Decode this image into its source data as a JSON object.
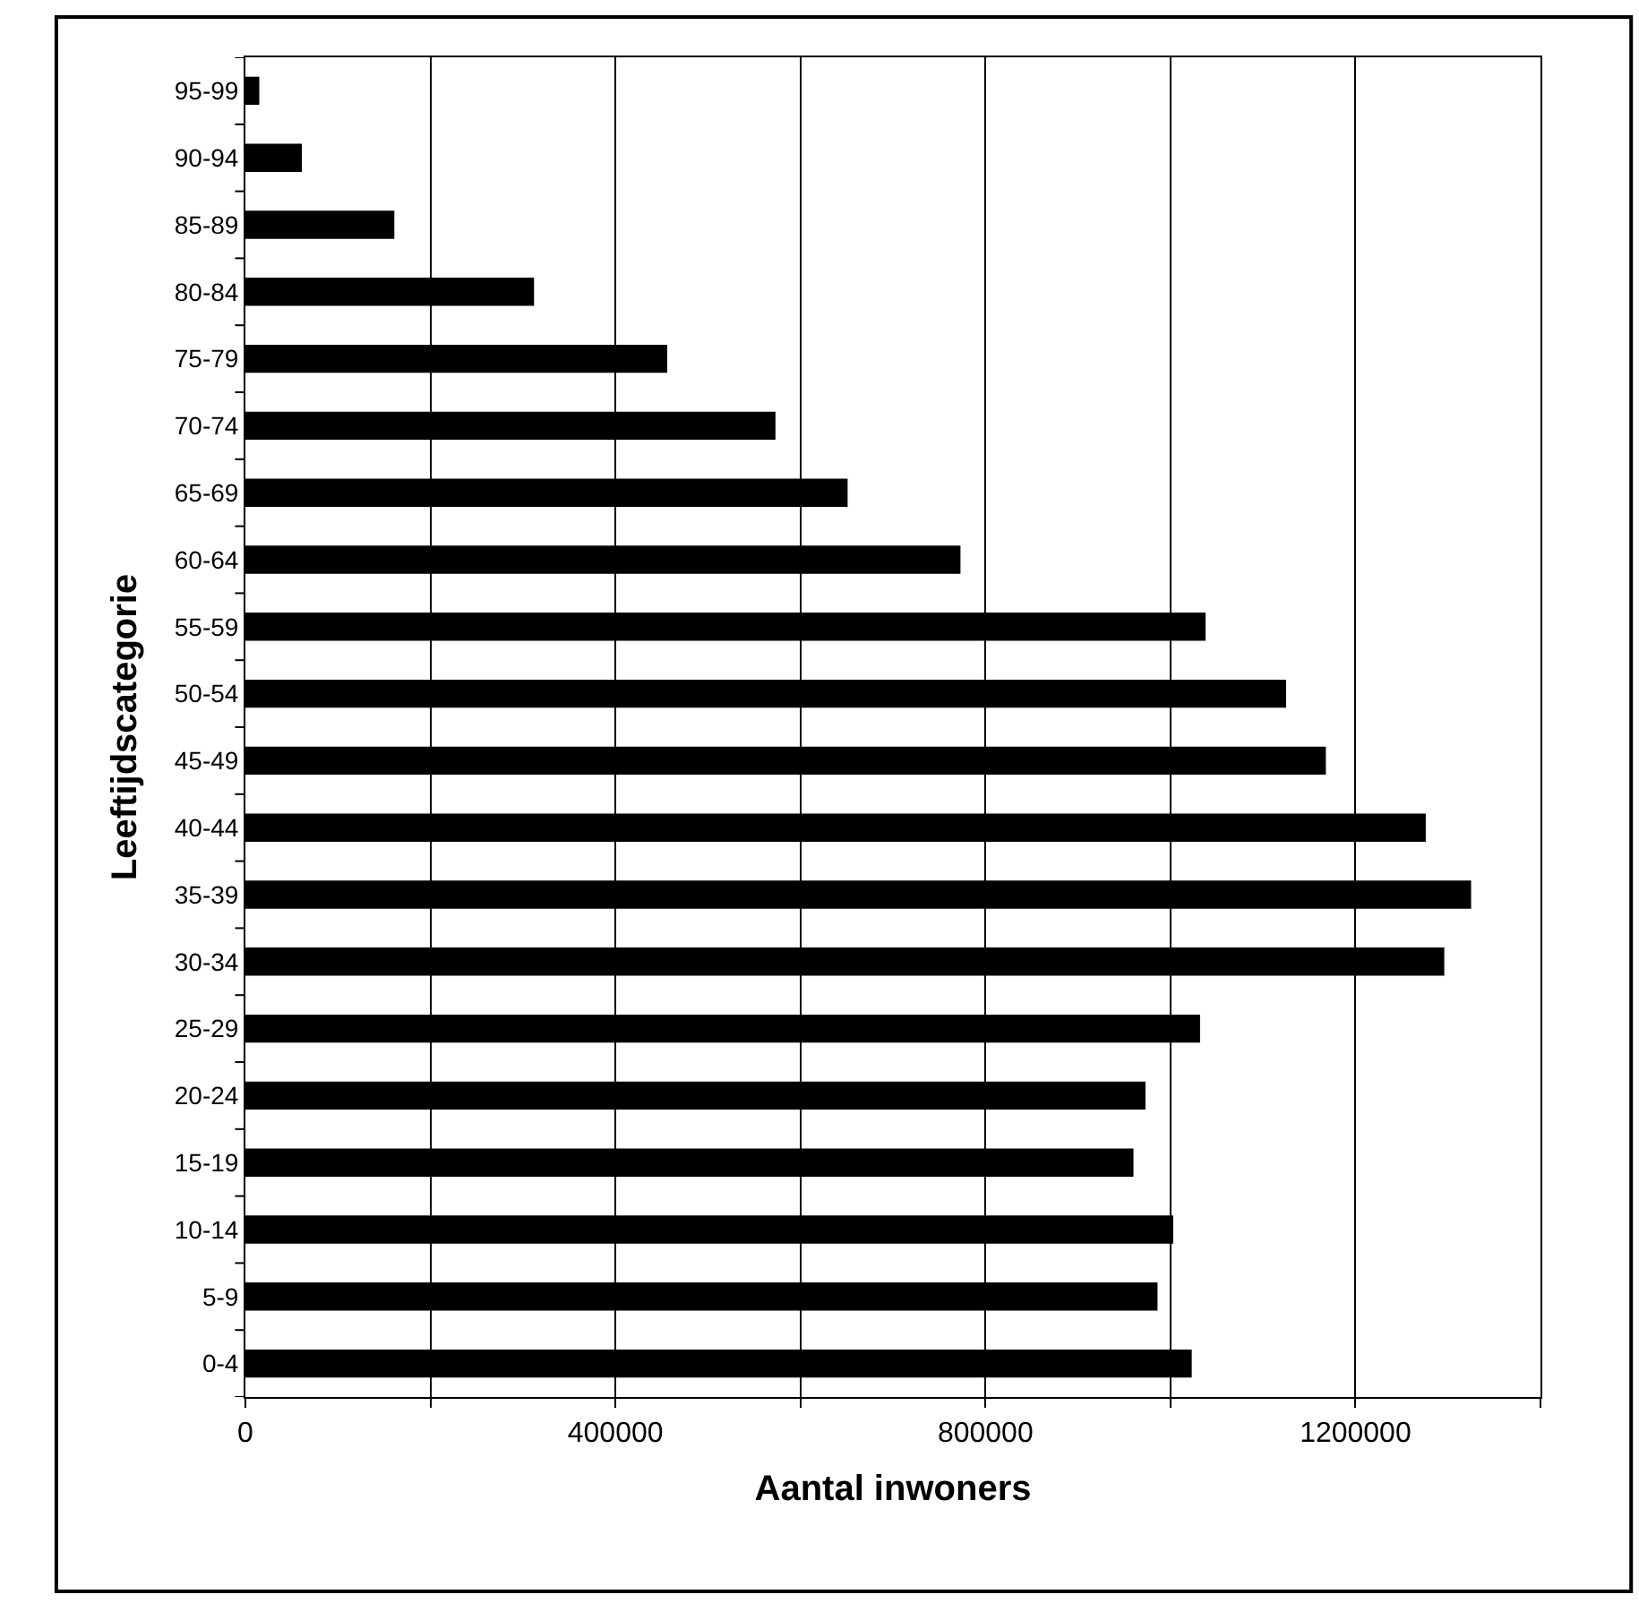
{
  "chart_data": {
    "type": "bar",
    "orientation": "horizontal",
    "xlabel": "Aantal inwoners",
    "ylabel": "Leeftijdscategorie",
    "categories": [
      "95-99",
      "90-94",
      "85-89",
      "80-84",
      "75-79",
      "70-74",
      "65-69",
      "60-64",
      "55-59",
      "50-54",
      "45-49",
      "40-44",
      "35-39",
      "30-34",
      "25-29",
      "20-24",
      "15-19",
      "10-14",
      "5-9",
      "0-4"
    ],
    "values": [
      15000,
      61000,
      161000,
      312000,
      456000,
      573000,
      651000,
      773000,
      1038000,
      1125000,
      1168000,
      1276000,
      1325000,
      1296000,
      1032000,
      973000,
      960000,
      1003000,
      986000,
      1023000
    ],
    "color": "#000000",
    "xlim": [
      0,
      1400000
    ],
    "xticks": [
      0,
      {
        "value": 200000,
        "label": null
      },
      400000,
      {
        "value": 600000,
        "label": null
      },
      800000,
      {
        "value": 1000000,
        "label": null
      },
      1200000,
      {
        "value": 1400000,
        "label": null
      }
    ],
    "grid": "x",
    "legend": false
  }
}
